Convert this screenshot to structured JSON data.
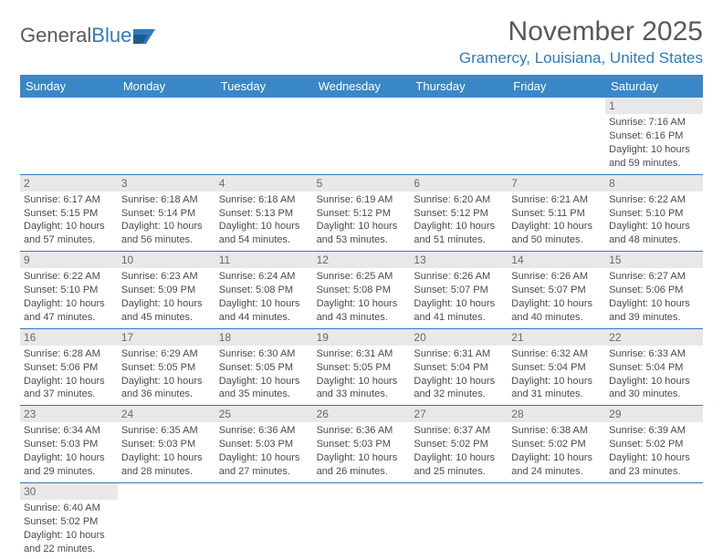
{
  "logo": {
    "part1": "General",
    "part2": "Blue"
  },
  "title": "November 2025",
  "location": "Gramercy, Louisiana, United States",
  "colors": {
    "header_bg": "#3a87c8",
    "accent": "#2f7bbf",
    "daynum_bg": "#e8e8e8",
    "text": "#4a4a4a",
    "title_gray": "#595959"
  },
  "day_names": [
    "Sunday",
    "Monday",
    "Tuesday",
    "Wednesday",
    "Thursday",
    "Friday",
    "Saturday"
  ],
  "weeks": [
    [
      null,
      null,
      null,
      null,
      null,
      null,
      {
        "n": "1",
        "sr": "7:16 AM",
        "ss": "6:16 PM",
        "dl": "10 hours and 59 minutes."
      }
    ],
    [
      {
        "n": "2",
        "sr": "6:17 AM",
        "ss": "5:15 PM",
        "dl": "10 hours and 57 minutes."
      },
      {
        "n": "3",
        "sr": "6:18 AM",
        "ss": "5:14 PM",
        "dl": "10 hours and 56 minutes."
      },
      {
        "n": "4",
        "sr": "6:18 AM",
        "ss": "5:13 PM",
        "dl": "10 hours and 54 minutes."
      },
      {
        "n": "5",
        "sr": "6:19 AM",
        "ss": "5:12 PM",
        "dl": "10 hours and 53 minutes."
      },
      {
        "n": "6",
        "sr": "6:20 AM",
        "ss": "5:12 PM",
        "dl": "10 hours and 51 minutes."
      },
      {
        "n": "7",
        "sr": "6:21 AM",
        "ss": "5:11 PM",
        "dl": "10 hours and 50 minutes."
      },
      {
        "n": "8",
        "sr": "6:22 AM",
        "ss": "5:10 PM",
        "dl": "10 hours and 48 minutes."
      }
    ],
    [
      {
        "n": "9",
        "sr": "6:22 AM",
        "ss": "5:10 PM",
        "dl": "10 hours and 47 minutes."
      },
      {
        "n": "10",
        "sr": "6:23 AM",
        "ss": "5:09 PM",
        "dl": "10 hours and 45 minutes."
      },
      {
        "n": "11",
        "sr": "6:24 AM",
        "ss": "5:08 PM",
        "dl": "10 hours and 44 minutes."
      },
      {
        "n": "12",
        "sr": "6:25 AM",
        "ss": "5:08 PM",
        "dl": "10 hours and 43 minutes."
      },
      {
        "n": "13",
        "sr": "6:26 AM",
        "ss": "5:07 PM",
        "dl": "10 hours and 41 minutes."
      },
      {
        "n": "14",
        "sr": "6:26 AM",
        "ss": "5:07 PM",
        "dl": "10 hours and 40 minutes."
      },
      {
        "n": "15",
        "sr": "6:27 AM",
        "ss": "5:06 PM",
        "dl": "10 hours and 39 minutes."
      }
    ],
    [
      {
        "n": "16",
        "sr": "6:28 AM",
        "ss": "5:06 PM",
        "dl": "10 hours and 37 minutes."
      },
      {
        "n": "17",
        "sr": "6:29 AM",
        "ss": "5:05 PM",
        "dl": "10 hours and 36 minutes."
      },
      {
        "n": "18",
        "sr": "6:30 AM",
        "ss": "5:05 PM",
        "dl": "10 hours and 35 minutes."
      },
      {
        "n": "19",
        "sr": "6:31 AM",
        "ss": "5:05 PM",
        "dl": "10 hours and 33 minutes."
      },
      {
        "n": "20",
        "sr": "6:31 AM",
        "ss": "5:04 PM",
        "dl": "10 hours and 32 minutes."
      },
      {
        "n": "21",
        "sr": "6:32 AM",
        "ss": "5:04 PM",
        "dl": "10 hours and 31 minutes."
      },
      {
        "n": "22",
        "sr": "6:33 AM",
        "ss": "5:04 PM",
        "dl": "10 hours and 30 minutes."
      }
    ],
    [
      {
        "n": "23",
        "sr": "6:34 AM",
        "ss": "5:03 PM",
        "dl": "10 hours and 29 minutes."
      },
      {
        "n": "24",
        "sr": "6:35 AM",
        "ss": "5:03 PM",
        "dl": "10 hours and 28 minutes."
      },
      {
        "n": "25",
        "sr": "6:36 AM",
        "ss": "5:03 PM",
        "dl": "10 hours and 27 minutes."
      },
      {
        "n": "26",
        "sr": "6:36 AM",
        "ss": "5:03 PM",
        "dl": "10 hours and 26 minutes."
      },
      {
        "n": "27",
        "sr": "6:37 AM",
        "ss": "5:02 PM",
        "dl": "10 hours and 25 minutes."
      },
      {
        "n": "28",
        "sr": "6:38 AM",
        "ss": "5:02 PM",
        "dl": "10 hours and 24 minutes."
      },
      {
        "n": "29",
        "sr": "6:39 AM",
        "ss": "5:02 PM",
        "dl": "10 hours and 23 minutes."
      }
    ],
    [
      {
        "n": "30",
        "sr": "6:40 AM",
        "ss": "5:02 PM",
        "dl": "10 hours and 22 minutes."
      },
      null,
      null,
      null,
      null,
      null,
      null
    ]
  ],
  "labels": {
    "sunrise": "Sunrise: ",
    "sunset": "Sunset: ",
    "daylight": "Daylight: "
  }
}
